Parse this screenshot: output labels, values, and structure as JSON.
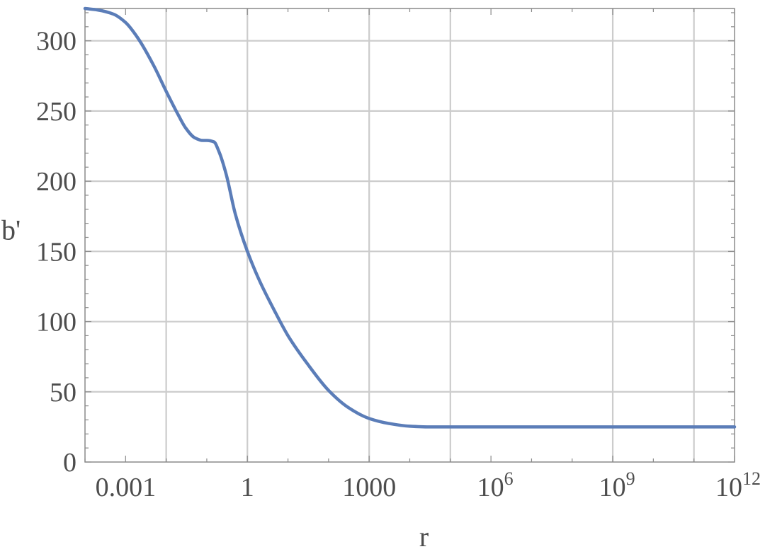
{
  "chart_data": {
    "type": "line",
    "title": "",
    "xlabel": "r",
    "ylabel": "b'",
    "x_scale": "log10",
    "xlim": [
      0.0001,
      1000000000000
    ],
    "ylim": [
      0,
      323
    ],
    "grid": true,
    "x_ticks": [
      {
        "value": 0.001,
        "label": "0.001"
      },
      {
        "value": 1,
        "label": "1"
      },
      {
        "value": 1000,
        "label": "1000"
      },
      {
        "value": 1000000,
        "label": "10",
        "exponent": "6"
      },
      {
        "value": 1000000000,
        "label": "10",
        "exponent": "9"
      },
      {
        "value": 1000000000000,
        "label": "10",
        "exponent": "12"
      }
    ],
    "x_gridlines": [
      0.01,
      1,
      1000,
      100000,
      1000000000,
      100000000000
    ],
    "y_ticks": [
      0,
      50,
      100,
      150,
      200,
      250,
      300
    ],
    "series": [
      {
        "color": "#5b7db8",
        "x": [
          0.0001,
          0.0002,
          0.0005,
          0.001,
          0.002,
          0.005,
          0.01,
          0.02,
          0.03,
          0.05,
          0.08,
          0.1,
          0.15,
          0.2,
          0.3,
          0.5,
          1,
          2,
          5,
          10,
          30,
          100,
          300,
          1000,
          3000,
          10000,
          30000,
          100000,
          1000000,
          1000000000,
          1000000000000
        ],
        "y": [
          323,
          322,
          319,
          313,
          302,
          282,
          264,
          247,
          238,
          231,
          229,
          229,
          228,
          221,
          205,
          177,
          150,
          129,
          106,
          90,
          70,
          51,
          39,
          31,
          27.5,
          25.5,
          25,
          25,
          25,
          25,
          25
        ]
      }
    ]
  }
}
